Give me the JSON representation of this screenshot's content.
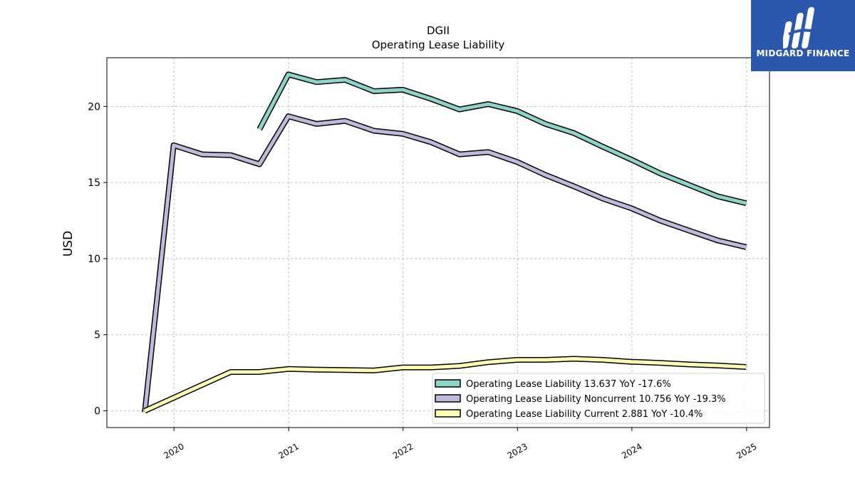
{
  "brand": {
    "name": "MIDGARD FINANCE",
    "color": "#2b57ad"
  },
  "chart_data": {
    "type": "line",
    "title": "DGII",
    "subtitle": "Operating Lease Liability",
    "xlabel": "",
    "ylabel": "USD",
    "ylim": [
      -1.1,
      23.2
    ],
    "yticks": [
      0,
      5,
      10,
      15,
      20
    ],
    "xlim": [
      "2019-06-01",
      "2025-03-15"
    ],
    "xticks": [
      "2020",
      "2021",
      "2022",
      "2023",
      "2024",
      "2025"
    ],
    "grid": true,
    "legend_position": "lower-right",
    "series": [
      {
        "name": "Operating Lease Liability",
        "legend_label": "Operating Lease Liability  13.637 YoY -17.6%",
        "color": "#8dd3c7",
        "points": [
          [
            "2020-09-30",
            18.5
          ],
          [
            "2020-12-31",
            22.1
          ],
          [
            "2021-03-31",
            21.6
          ],
          [
            "2021-06-30",
            21.75
          ],
          [
            "2021-09-30",
            21.0
          ],
          [
            "2021-12-31",
            21.1
          ],
          [
            "2022-03-31",
            20.5
          ],
          [
            "2022-06-30",
            19.8
          ],
          [
            "2022-09-30",
            20.15
          ],
          [
            "2022-12-31",
            19.7
          ],
          [
            "2023-03-31",
            18.85
          ],
          [
            "2023-06-30",
            18.25
          ],
          [
            "2023-09-30",
            17.35
          ],
          [
            "2023-12-31",
            16.5
          ],
          [
            "2024-03-31",
            15.6
          ],
          [
            "2024-06-30",
            14.85
          ],
          [
            "2024-09-30",
            14.1
          ],
          [
            "2024-12-31",
            13.637
          ]
        ]
      },
      {
        "name": "Operating Lease Liability Noncurrent",
        "legend_label": "Operating Lease Liability Noncurrent  10.756 YoY -19.3%",
        "color": "#bebada",
        "points": [
          [
            "2019-09-30",
            -0.1
          ],
          [
            "2019-12-31",
            17.45
          ],
          [
            "2020-03-31",
            16.85
          ],
          [
            "2020-06-30",
            16.8
          ],
          [
            "2020-09-30",
            16.2
          ],
          [
            "2020-12-31",
            19.35
          ],
          [
            "2021-03-31",
            18.85
          ],
          [
            "2021-06-30",
            19.05
          ],
          [
            "2021-09-30",
            18.4
          ],
          [
            "2021-12-31",
            18.2
          ],
          [
            "2022-03-31",
            17.65
          ],
          [
            "2022-06-30",
            16.85
          ],
          [
            "2022-09-30",
            17.0
          ],
          [
            "2022-12-31",
            16.35
          ],
          [
            "2023-03-31",
            15.5
          ],
          [
            "2023-06-30",
            14.75
          ],
          [
            "2023-09-30",
            13.95
          ],
          [
            "2023-12-31",
            13.3
          ],
          [
            "2024-03-31",
            12.5
          ],
          [
            "2024-06-30",
            11.85
          ],
          [
            "2024-09-30",
            11.2
          ],
          [
            "2024-12-31",
            10.756
          ]
        ]
      },
      {
        "name": "Operating Lease Liability Current",
        "legend_label": "Operating Lease Liability Current  2.881 YoY -10.4%",
        "color": "#ffffb3",
        "points": [
          [
            "2019-09-30",
            0.0
          ],
          [
            "2020-06-30",
            2.55
          ],
          [
            "2020-09-30",
            2.55
          ],
          [
            "2020-12-31",
            2.75
          ],
          [
            "2021-03-31",
            2.7
          ],
          [
            "2021-06-30",
            2.68
          ],
          [
            "2021-09-30",
            2.65
          ],
          [
            "2021-12-31",
            2.85
          ],
          [
            "2022-03-31",
            2.85
          ],
          [
            "2022-06-30",
            2.95
          ],
          [
            "2022-09-30",
            3.2
          ],
          [
            "2022-12-31",
            3.35
          ],
          [
            "2023-03-31",
            3.35
          ],
          [
            "2023-06-30",
            3.42
          ],
          [
            "2023-09-30",
            3.35
          ],
          [
            "2023-12-31",
            3.22
          ],
          [
            "2024-03-31",
            3.15
          ],
          [
            "2024-06-30",
            3.05
          ],
          [
            "2024-09-30",
            2.98
          ],
          [
            "2024-12-31",
            2.881
          ]
        ]
      }
    ]
  }
}
